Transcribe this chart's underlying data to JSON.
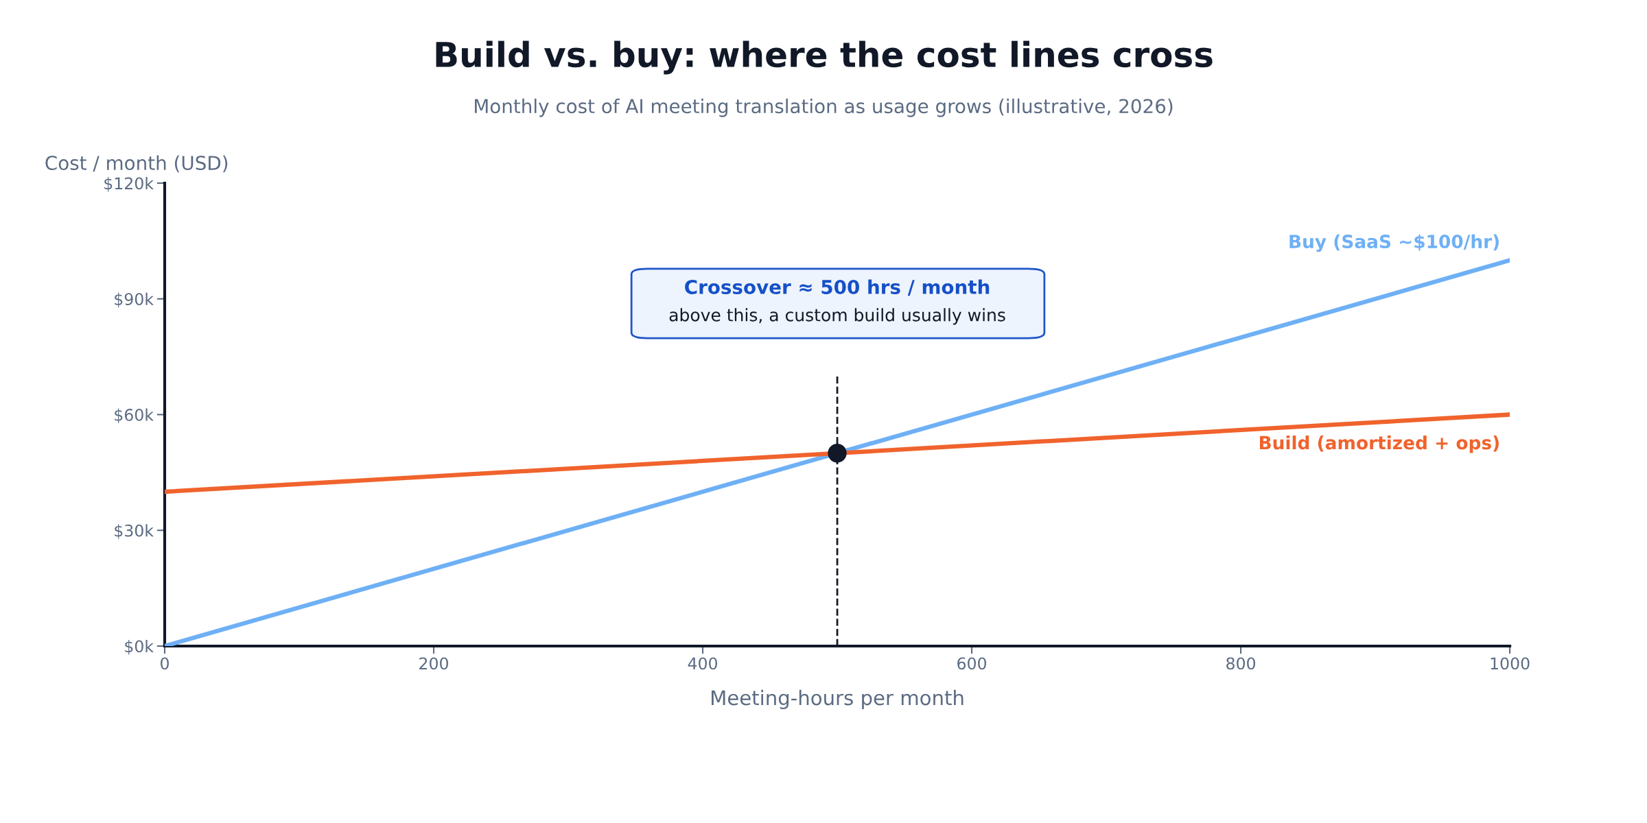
{
  "chart_data": {
    "type": "line",
    "title": "Build vs. buy: where the cost lines cross",
    "subtitle": "Monthly cost of AI meeting translation as usage grows (illustrative, 2026)",
    "xlabel": "Meeting-hours per month",
    "ylabel": "Cost / month (USD)",
    "series": [
      {
        "name": "Buy (SaaS ~$100/hr)",
        "color": "#6eb0f5",
        "x": [
          0,
          1000
        ],
        "values": [
          0,
          100
        ]
      },
      {
        "name": "Build (amortized + ops)",
        "color": "#f0632d",
        "x": [
          0,
          1000
        ],
        "values": [
          40,
          60
        ]
      },
      {
        "type": "scatter",
        "color": "#111827",
        "x": [
          500
        ],
        "values": [
          50
        ],
        "marker": "circle"
      }
    ],
    "xlim": [
      0,
      1000
    ],
    "xticks": [
      0,
      200,
      400,
      600,
      800,
      1000
    ],
    "ylim": [
      0,
      120
    ],
    "yticks": [
      {
        "value": 0,
        "label": "$0k"
      },
      {
        "value": 30,
        "label": "$30k"
      },
      {
        "value": 60,
        "label": "$60k"
      },
      {
        "value": 90,
        "label": "$90k"
      },
      {
        "value": 120,
        "label": "$120k"
      }
    ],
    "ref_lines": [
      {
        "axis": "x",
        "value": 500,
        "color": "#111827",
        "line_style": "dashed"
      }
    ],
    "annotations": [
      "Crossover ≈ 500 hrs / month",
      "above this, a custom build usually wins"
    ],
    "grid": false,
    "legend": false,
    "marker": "none",
    "line_style": "solid"
  }
}
